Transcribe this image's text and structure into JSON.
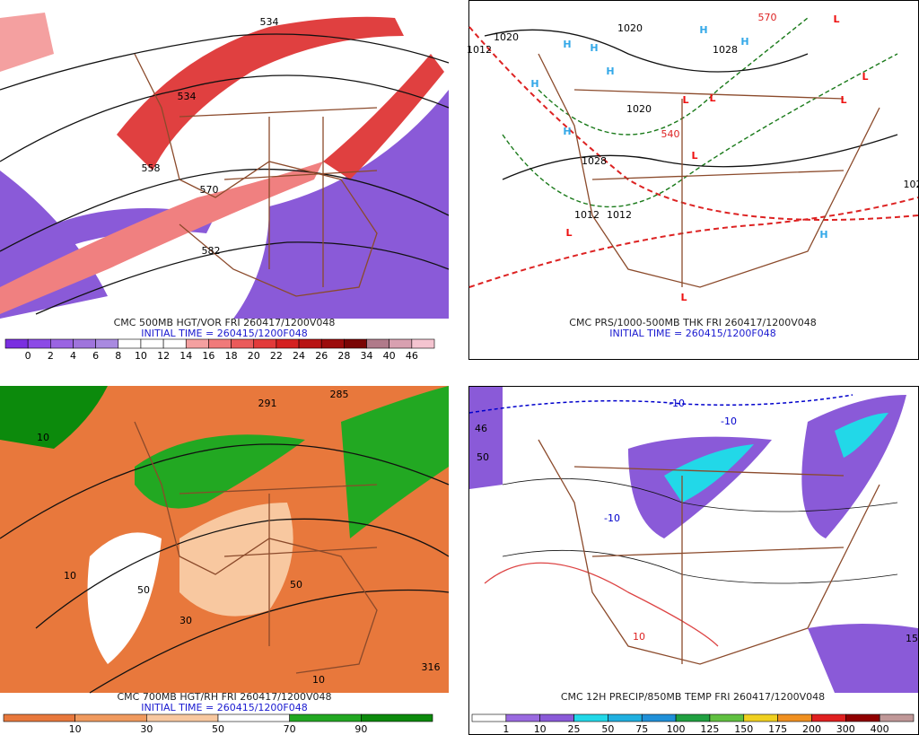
{
  "panels": [
    {
      "title": "CMC 500MB HGT/VOR FRI 260417/1200V048",
      "initial": "INITIAL TIME = 260415/1200F048",
      "colorbar": {
        "labels": [
          "0",
          "2",
          "4",
          "6",
          "8",
          "10",
          "12",
          "14",
          "16",
          "18",
          "20",
          "22",
          "24",
          "26",
          "28",
          "34",
          "40",
          "46"
        ],
        "colors": [
          "#7a2fe0",
          "#8c4ae6",
          "#9a64e2",
          "#9f74dc",
          "#a98ae0",
          "#ffffff",
          "#ffffff",
          "#ffffff",
          "#f4a0a0",
          "#f07a7a",
          "#ea5a5a",
          "#e23a3a",
          "#d42020",
          "#b81414",
          "#9c0c0c",
          "#7a0505",
          "#b07a8a",
          "#d8a0b0",
          "#f4c4d0"
        ]
      },
      "map_labels": [
        {
          "text": "534",
          "color": "#000000"
        },
        {
          "text": "534",
          "color": "#000000"
        },
        {
          "text": "558",
          "color": "#000000"
        },
        {
          "text": "570",
          "color": "#000000"
        },
        {
          "text": "582",
          "color": "#000000"
        }
      ]
    },
    {
      "title": "CMC PRS/1000-500MB THK FRI 260417/1200V048",
      "initial": "INITIAL TIME = 260415/1200F048",
      "map_labels": [
        {
          "text": "1020",
          "color": "#000000"
        },
        {
          "text": "1012",
          "color": "#000000"
        },
        {
          "text": "1020",
          "color": "#000000"
        },
        {
          "text": "1028",
          "color": "#000000"
        },
        {
          "text": "1020",
          "color": "#000000"
        },
        {
          "text": "1028",
          "color": "#000000"
        },
        {
          "text": "1012",
          "color": "#000000"
        },
        {
          "text": "1012",
          "color": "#000000"
        },
        {
          "text": "102",
          "color": "#000000"
        },
        {
          "text": "540",
          "color": "#dd2222"
        },
        {
          "text": "570",
          "color": "#dd2222"
        },
        {
          "text": "H",
          "color": "#33a8e8"
        },
        {
          "text": "H",
          "color": "#33a8e8"
        },
        {
          "text": "H",
          "color": "#33a8e8"
        },
        {
          "text": "H",
          "color": "#33a8e8"
        },
        {
          "text": "H",
          "color": "#33a8e8"
        },
        {
          "text": "H",
          "color": "#33a8e8"
        },
        {
          "text": "H",
          "color": "#33a8e8"
        },
        {
          "text": "H",
          "color": "#33a8e8"
        },
        {
          "text": "L",
          "color": "#ee1111"
        },
        {
          "text": "L",
          "color": "#ee1111"
        },
        {
          "text": "L",
          "color": "#ee1111"
        },
        {
          "text": "L",
          "color": "#ee1111"
        },
        {
          "text": "L",
          "color": "#ee1111"
        },
        {
          "text": "L",
          "color": "#ee1111"
        },
        {
          "text": "L",
          "color": "#ee1111"
        },
        {
          "text": "L",
          "color": "#ee1111"
        }
      ]
    },
    {
      "title": "CMC 700MB HGT/RH FRI 260417/1200V048",
      "initial": "INITIAL TIME = 260415/1200F048",
      "colorbar": {
        "labels": [
          "10",
          "30",
          "50",
          "70",
          "90"
        ],
        "colors": [
          "#e8783c",
          "#f09a5e",
          "#f8c8a0",
          "#ffffff",
          "#22a822",
          "#0c8a0c"
        ]
      },
      "map_labels": [
        {
          "text": "285",
          "color": "#000000"
        },
        {
          "text": "291",
          "color": "#000000"
        },
        {
          "text": "10",
          "color": "#000000"
        },
        {
          "text": "10",
          "color": "#000000"
        },
        {
          "text": "50",
          "color": "#000000"
        },
        {
          "text": "50",
          "color": "#000000"
        },
        {
          "text": "30",
          "color": "#000000"
        },
        {
          "text": "10",
          "color": "#000000"
        },
        {
          "text": "316",
          "color": "#000000"
        }
      ]
    },
    {
      "title": "CMC 12H PRECIP/850MB TEMP FRI 260417/1200V048",
      "colorbar": {
        "labels": [
          "1",
          "10",
          "25",
          "50",
          "75",
          "100",
          "125",
          "150",
          "175",
          "200",
          "300",
          "400"
        ],
        "colors": [
          "#ffffff",
          "#9a6ae0",
          "#8a5ad8",
          "#22d8e8",
          "#20b0e0",
          "#2090d8",
          "#20a040",
          "#60c040",
          "#f0d020",
          "#f09020",
          "#e02020",
          "#900000",
          "#c09898"
        ]
      },
      "map_labels": [
        {
          "text": "-10",
          "color": "#0000cc"
        },
        {
          "text": "-10",
          "color": "#0000cc"
        },
        {
          "text": "-10",
          "color": "#0000cc"
        },
        {
          "text": "10",
          "color": "#dd2222"
        },
        {
          "text": "15",
          "color": "#000000"
        },
        {
          "text": "46",
          "color": "#000000"
        },
        {
          "text": "50",
          "color": "#000000"
        }
      ]
    }
  ]
}
